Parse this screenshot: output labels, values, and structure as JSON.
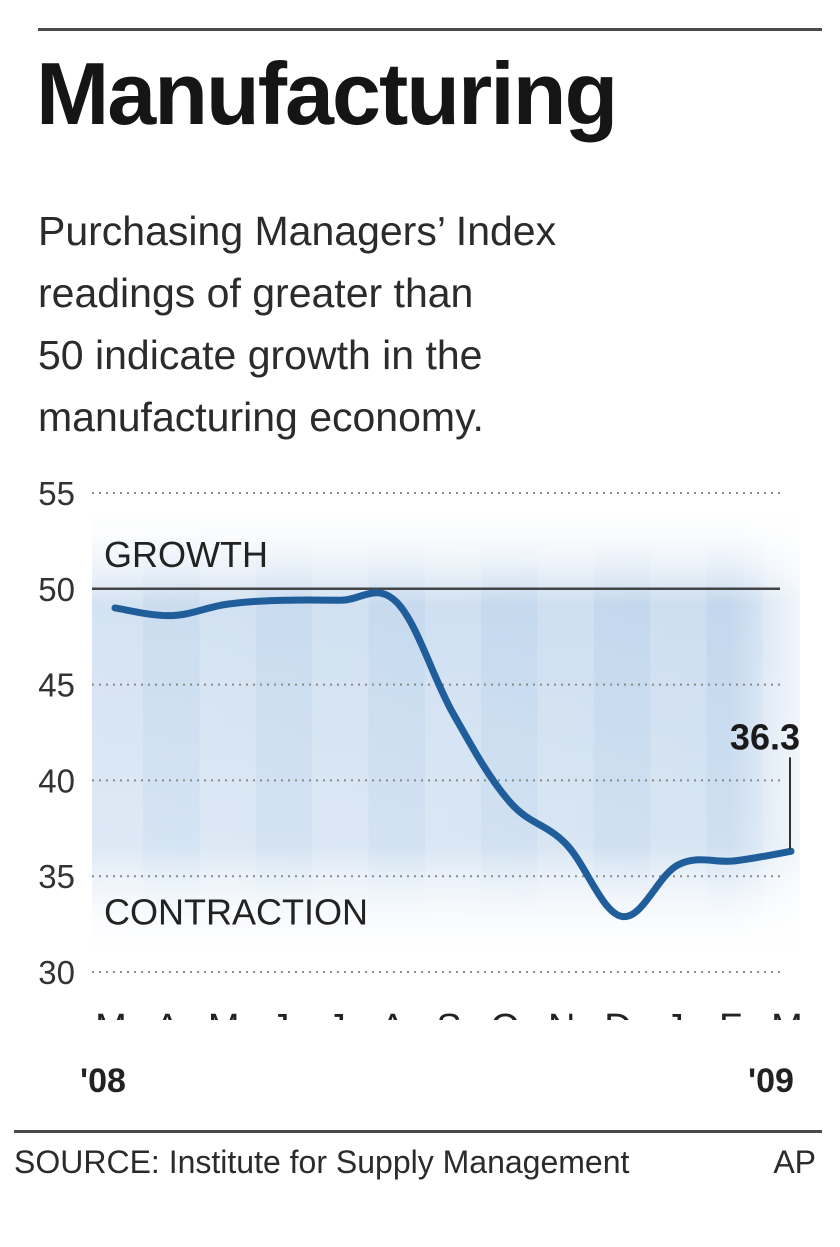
{
  "header": {
    "title": "Manufacturing",
    "subtitle_lines": [
      "Purchasing Managers’ Index",
      "readings of greater than",
      "50 indicate growth in the",
      "manufacturing economy."
    ]
  },
  "footer": {
    "source": "SOURCE: Institute for Supply Management",
    "credit": "AP"
  },
  "colors": {
    "line": "#1f5d9b",
    "band": "#c9dbef",
    "grid": "#8a8a8a",
    "threshold": "#444444"
  },
  "chart_data": {
    "type": "line",
    "title": "Manufacturing",
    "categories": [
      "M",
      "A",
      "M",
      "J",
      "J",
      "A",
      "S",
      "O",
      "N",
      "D",
      "J",
      "F",
      "M"
    ],
    "year_labels": {
      "first": "'08",
      "last": "'09"
    },
    "series": [
      {
        "values": [
          49.0,
          48.6,
          49.2,
          49.4,
          49.4,
          49.3,
          43.5,
          38.9,
          36.7,
          32.9,
          35.6,
          35.8,
          36.3
        ]
      }
    ],
    "ylim": [
      30,
      55
    ],
    "yticks": [
      55,
      50,
      45,
      40,
      35,
      30
    ],
    "threshold": 50,
    "region_labels": {
      "above": "GROWTH",
      "below": "CONTRACTION"
    },
    "callout": {
      "index": 12,
      "text": "36.3"
    },
    "grid": true
  }
}
